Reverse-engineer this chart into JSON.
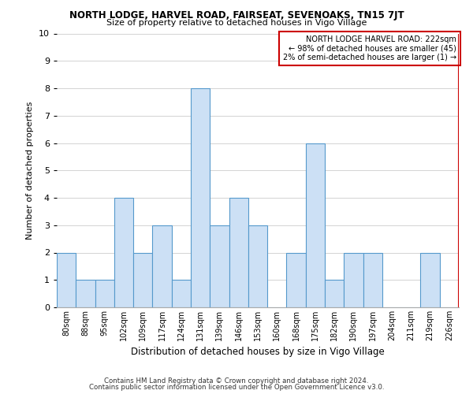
{
  "title": "NORTH LODGE, HARVEL ROAD, FAIRSEAT, SEVENOAKS, TN15 7JT",
  "subtitle": "Size of property relative to detached houses in Vigo Village",
  "xlabel": "Distribution of detached houses by size in Vigo Village",
  "ylabel": "Number of detached properties",
  "footer1": "Contains HM Land Registry data © Crown copyright and database right 2024.",
  "footer2": "Contains public sector information licensed under the Open Government Licence v3.0.",
  "categories": [
    "80sqm",
    "88sqm",
    "95sqm",
    "102sqm",
    "109sqm",
    "117sqm",
    "124sqm",
    "131sqm",
    "139sqm",
    "146sqm",
    "153sqm",
    "160sqm",
    "168sqm",
    "175sqm",
    "182sqm",
    "190sqm",
    "197sqm",
    "204sqm",
    "211sqm",
    "219sqm",
    "226sqm"
  ],
  "values": [
    2,
    1,
    1,
    4,
    2,
    3,
    1,
    8,
    3,
    4,
    3,
    0,
    2,
    6,
    1,
    2,
    2,
    0,
    0,
    2,
    0
  ],
  "bar_color": "#cce0f5",
  "bar_edge_color": "#5599cc",
  "highlight_line_index": 20,
  "highlight_line_color": "#cc0000",
  "annotation_text": "NORTH LODGE HARVEL ROAD: 222sqm\n← 98% of detached houses are smaller (45)\n2% of semi-detached houses are larger (1) →",
  "annotation_box_color": "#cc0000",
  "ylim": [
    0,
    10
  ],
  "yticks": [
    0,
    1,
    2,
    3,
    4,
    5,
    6,
    7,
    8,
    9,
    10
  ],
  "background_color": "#ffffff",
  "grid_color": "#cccccc"
}
